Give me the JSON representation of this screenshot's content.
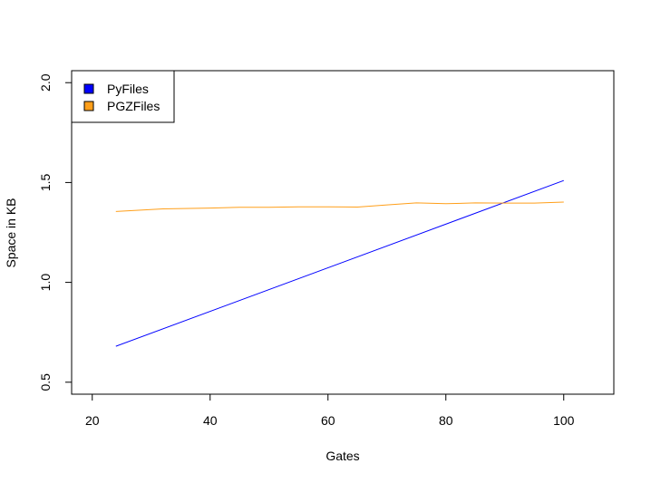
{
  "chart_data": {
    "type": "line",
    "title": "",
    "xlabel": "Gates",
    "ylabel": "Space in KB",
    "xlim": [
      16.5,
      108.5
    ],
    "ylim": [
      0.44,
      2.06
    ],
    "xticks": [
      20,
      40,
      60,
      80,
      100
    ],
    "yticks": [
      0.5,
      1.0,
      1.5,
      2.0
    ],
    "xtick_labels": [
      "20",
      "40",
      "60",
      "80",
      "100"
    ],
    "ytick_labels": [
      "0.5",
      "1.0",
      "1.5",
      "2.0"
    ],
    "grid": false,
    "legend_position": "top-left",
    "series": [
      {
        "name": "PyFiles",
        "color": "#0000ff",
        "x": [
          24,
          100
        ],
        "y": [
          0.68,
          1.51
        ]
      },
      {
        "name": "PGZFiles",
        "color": "#ff9f1a",
        "x": [
          24,
          32,
          40,
          45,
          50,
          55,
          60,
          65,
          70,
          75,
          80,
          85,
          90,
          95,
          100
        ],
        "y": [
          1.355,
          1.368,
          1.372,
          1.376,
          1.376,
          1.378,
          1.378,
          1.377,
          1.388,
          1.398,
          1.394,
          1.398,
          1.397,
          1.397,
          1.402
        ]
      }
    ]
  }
}
